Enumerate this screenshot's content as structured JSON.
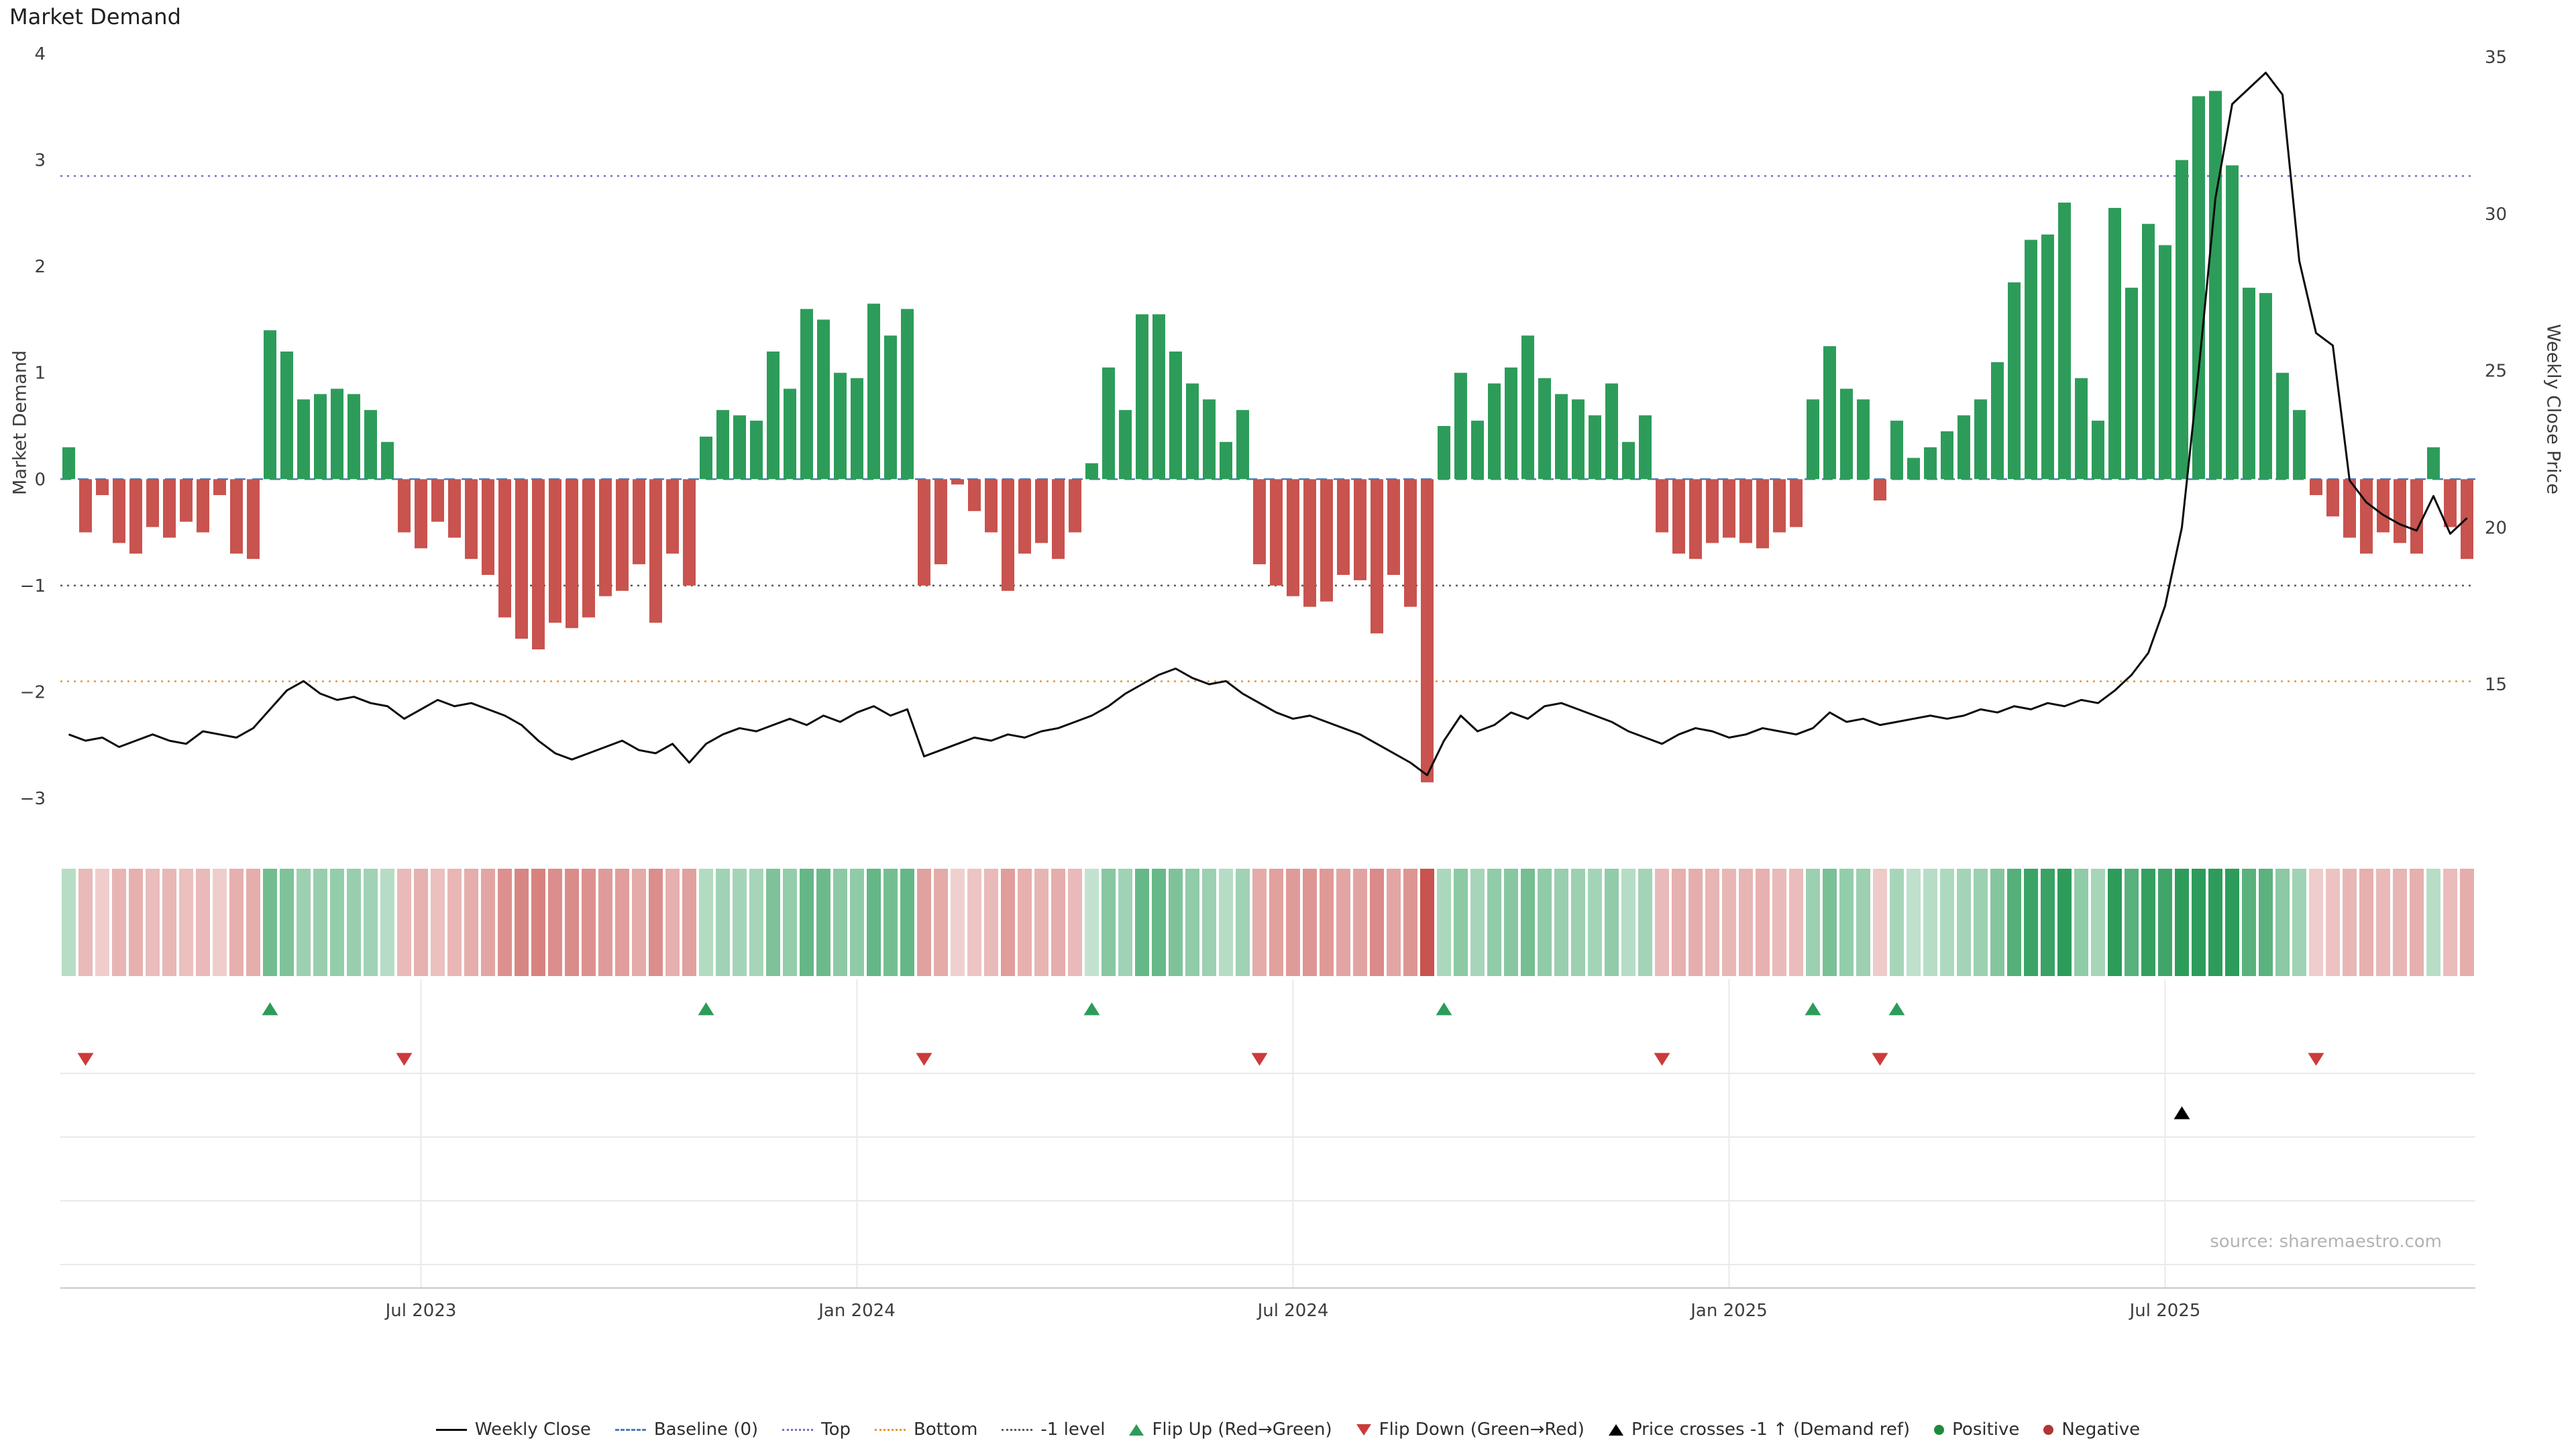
{
  "title": "Market Demand",
  "source": "source: sharemaestro.com",
  "axes": {
    "left_label": "Market Demand",
    "right_label": "Weekly Close Price",
    "left_ticks": [
      {
        "label": "4",
        "value": 4
      },
      {
        "label": "3",
        "value": 3
      },
      {
        "label": "2",
        "value": 2
      },
      {
        "label": "1",
        "value": 1
      },
      {
        "label": "0",
        "value": 0
      },
      {
        "label": "−1",
        "value": -1
      },
      {
        "label": "−2",
        "value": -2
      },
      {
        "label": "−3",
        "value": -3
      }
    ],
    "right_ticks": [
      {
        "label": "35",
        "value": 35
      },
      {
        "label": "30",
        "value": 30
      },
      {
        "label": "25",
        "value": 25
      },
      {
        "label": "20",
        "value": 20
      },
      {
        "label": "15",
        "value": 15
      }
    ],
    "x_ticks": [
      {
        "label": "Jul 2023",
        "week": 21
      },
      {
        "label": "Jan 2024",
        "week": 47
      },
      {
        "label": "Jul 2024",
        "week": 73
      },
      {
        "label": "Jan 2025",
        "week": 99
      },
      {
        "label": "Jul 2025",
        "week": 125
      }
    ]
  },
  "chart_data": {
    "type": "bar",
    "x_unit": "week",
    "n_weeks": 144,
    "title": "Market Demand",
    "series": [
      {
        "name": "Market Demand",
        "type": "bar",
        "axis": "left",
        "values": [
          0.3,
          -0.5,
          -0.15,
          -0.6,
          -0.7,
          -0.45,
          -0.55,
          -0.4,
          -0.5,
          -0.15,
          -0.7,
          -0.75,
          1.4,
          1.2,
          0.75,
          0.8,
          0.85,
          0.8,
          0.65,
          0.35,
          -0.5,
          -0.65,
          -0.4,
          -0.55,
          -0.75,
          -0.9,
          -1.3,
          -1.5,
          -1.6,
          -1.35,
          -1.4,
          -1.3,
          -1.1,
          -1.05,
          -0.8,
          -1.35,
          -0.7,
          -1.0,
          0.4,
          0.65,
          0.6,
          0.55,
          1.2,
          0.85,
          1.6,
          1.5,
          1.0,
          0.95,
          1.65,
          1.35,
          1.6,
          -1.0,
          -0.8,
          -0.05,
          -0.3,
          -0.5,
          -1.05,
          -0.7,
          -0.6,
          -0.75,
          -0.5,
          0.15,
          1.05,
          0.65,
          1.55,
          1.55,
          1.2,
          0.9,
          0.75,
          0.35,
          0.65,
          -0.8,
          -1.0,
          -1.1,
          -1.2,
          -1.15,
          -0.9,
          -0.95,
          -1.45,
          -0.9,
          -1.2,
          -2.85,
          0.5,
          1.0,
          0.55,
          0.9,
          1.05,
          1.35,
          0.95,
          0.8,
          0.75,
          0.6,
          0.9,
          0.35,
          0.6,
          -0.5,
          -0.7,
          -0.75,
          -0.6,
          -0.55,
          -0.6,
          -0.65,
          -0.5,
          -0.45,
          0.75,
          1.25,
          0.85,
          0.75,
          -0.2,
          0.55,
          0.2,
          0.3,
          0.45,
          0.6,
          0.75,
          1.1,
          1.85,
          2.25,
          2.3,
          2.6,
          0.95,
          0.55,
          2.55,
          1.8,
          2.4,
          2.2,
          3.0,
          3.6,
          3.65,
          2.95,
          1.8,
          1.75,
          1.0,
          0.65,
          -0.15,
          -0.35,
          -0.55,
          -0.7,
          -0.5,
          -0.6,
          -0.7,
          0.3,
          -0.45,
          -0.75
        ]
      },
      {
        "name": "Weekly Close",
        "type": "line",
        "axis": "right",
        "values": [
          13.4,
          13.2,
          13.3,
          13.0,
          13.2,
          13.4,
          13.2,
          13.1,
          13.5,
          13.4,
          13.3,
          13.6,
          14.2,
          14.8,
          15.1,
          14.7,
          14.5,
          14.6,
          14.4,
          14.3,
          13.9,
          14.2,
          14.5,
          14.3,
          14.4,
          14.2,
          14.0,
          13.7,
          13.2,
          12.8,
          12.6,
          12.8,
          13.0,
          13.2,
          12.9,
          12.8,
          13.1,
          12.5,
          13.1,
          13.4,
          13.6,
          13.5,
          13.7,
          13.9,
          13.7,
          14.0,
          13.8,
          14.1,
          14.3,
          14.0,
          14.2,
          12.7,
          12.9,
          13.1,
          13.3,
          13.2,
          13.4,
          13.3,
          13.5,
          13.6,
          13.8,
          14.0,
          14.3,
          14.7,
          15.0,
          15.3,
          15.5,
          15.2,
          15.0,
          15.1,
          14.7,
          14.4,
          14.1,
          13.9,
          14.0,
          13.8,
          13.6,
          13.4,
          13.1,
          12.8,
          12.5,
          12.1,
          13.2,
          14.0,
          13.5,
          13.7,
          14.1,
          13.9,
          14.3,
          14.4,
          14.2,
          14.0,
          13.8,
          13.5,
          13.3,
          13.1,
          13.4,
          13.6,
          13.5,
          13.3,
          13.4,
          13.6,
          13.5,
          13.4,
          13.6,
          14.1,
          13.8,
          13.9,
          13.7,
          13.8,
          13.9,
          14.0,
          13.9,
          14.0,
          14.2,
          14.1,
          14.3,
          14.2,
          14.4,
          14.3,
          14.5,
          14.4,
          14.8,
          15.3,
          16.0,
          17.5,
          20.0,
          25.0,
          30.5,
          33.5,
          34.0,
          34.5,
          33.8,
          28.5,
          26.2,
          25.8,
          21.5,
          20.8,
          20.4,
          20.1,
          19.9,
          21.0,
          19.8,
          20.3
        ]
      }
    ],
    "ylim_left": [
      -3.2,
      4
    ],
    "ylim_right": [
      11.6,
      35.3
    ],
    "grid": "panels-only",
    "legend_position": "bottom-center",
    "reference_lines": [
      {
        "name": "Baseline (0)",
        "value": 0,
        "style": "dashed",
        "color": "#4a7ebb"
      },
      {
        "name": "Top",
        "value": 2.85,
        "style": "dotted",
        "color": "#6f6fc4"
      },
      {
        "name": "Bottom",
        "value": -1.9,
        "style": "dotted",
        "color": "#e59637"
      },
      {
        "name": "-1 level",
        "value": -1,
        "style": "dotted",
        "color": "#5a5a5a"
      }
    ],
    "markers": {
      "flip_up_weeks": [
        12,
        38,
        61,
        82,
        104,
        109
      ],
      "flip_down_weeks": [
        1,
        20,
        51,
        71,
        95,
        108,
        134
      ],
      "price_cross_weeks": [
        126
      ]
    },
    "colors": {
      "positive": "#2d9c5a",
      "negative": "#c8534f",
      "line": "#0b0b0b",
      "flip_up": "#2d9c5a",
      "flip_down": "#cc3b3b",
      "price_cross": "#000000"
    }
  },
  "legend": [
    {
      "label": "Weekly Close",
      "symbol": "line",
      "color": "#0b0b0b"
    },
    {
      "label": "Baseline (0)",
      "symbol": "dashed",
      "color": "#4a7ebb"
    },
    {
      "label": "Top",
      "symbol": "dotted",
      "color": "#6f6fc4"
    },
    {
      "label": "Bottom",
      "symbol": "dotted",
      "color": "#e59637"
    },
    {
      "label": "-1 level",
      "symbol": "dotted",
      "color": "#5a5a5a"
    },
    {
      "label": "Flip Up (Red→Green)",
      "symbol": "tri-up",
      "color": "#2d9c5a"
    },
    {
      "label": "Flip Down (Green→Red)",
      "symbol": "tri-down",
      "color": "#cc3b3b"
    },
    {
      "label": "Price crosses -1 ↑ (Demand ref)",
      "symbol": "tri-up",
      "color": "#000000"
    },
    {
      "label": "Positive",
      "symbol": "dot",
      "color": "#1f8a3d"
    },
    {
      "label": "Negative",
      "symbol": "dot",
      "color": "#b03535"
    }
  ]
}
